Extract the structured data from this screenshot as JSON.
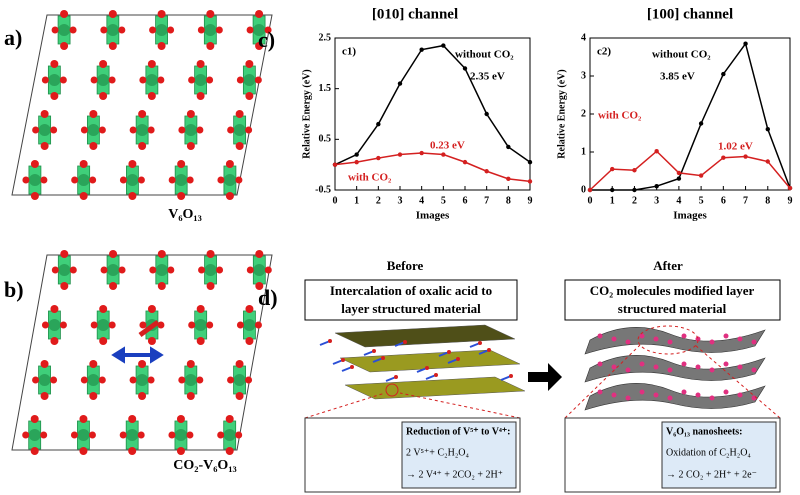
{
  "panels": {
    "a": {
      "label": "a)",
      "caption": "V₆O₁₃"
    },
    "b": {
      "label": "b)",
      "caption": "CO₂-V₆O₁₃"
    },
    "c": {
      "label": "c)"
    },
    "d": {
      "label": "d)",
      "before": "Before",
      "after": "After",
      "before_box": [
        "Intercalation of oxalic acid to",
        "layer structured material"
      ],
      "after_box": [
        "CO₂ molecules modified layer",
        "structured material"
      ],
      "before_inset": [
        "Reduction of V⁵⁺ to V⁴⁺:",
        "2 V⁵⁺+ C₂H₂O₄",
        "→ 2 V⁴⁺ + 2CO₂ + 2H⁺"
      ],
      "after_inset": [
        "V₆O₁₃ nanosheets:",
        "Oxidation of C₂H₂O₄",
        "→ 2 CO₂ + 2H⁺ + 2e⁻"
      ]
    }
  },
  "chart_data": [
    {
      "type": "line",
      "title": "[010] channel",
      "xlabel": "Images",
      "ylabel": "Relative Energy (eV)",
      "x": [
        0,
        1,
        2,
        3,
        4,
        5,
        6,
        7,
        8,
        9
      ],
      "series": [
        {
          "name": "without CO₂",
          "color": "#000000",
          "values": [
            0,
            0.2,
            0.8,
            1.6,
            2.27,
            2.35,
            1.9,
            1.0,
            0.35,
            0.05
          ]
        },
        {
          "name": "with CO₂",
          "color": "#d42020",
          "values": [
            0,
            0.05,
            0.13,
            0.2,
            0.23,
            0.2,
            0.05,
            -0.13,
            -0.28,
            -0.33
          ]
        }
      ],
      "xlim": [
        0,
        9
      ],
      "ylim": [
        -0.5,
        2.5
      ],
      "xticks": [
        0,
        1,
        2,
        3,
        4,
        5,
        6,
        7,
        8,
        9
      ],
      "yticks": [
        -0.5,
        0.5,
        1.5,
        2.5
      ],
      "annotations": [
        {
          "text": "c1)",
          "color": "#000000"
        },
        {
          "text": "without CO₂",
          "color": "#000000"
        },
        {
          "text": "2.35 eV",
          "color": "#000000"
        },
        {
          "text": "0.23 eV",
          "color": "#d42020"
        },
        {
          "text": "with CO₂",
          "color": "#d42020"
        }
      ]
    },
    {
      "type": "line",
      "title": "[100] channel",
      "xlabel": "Images",
      "ylabel": "Relative Energy (eV)",
      "x": [
        0,
        1,
        2,
        3,
        4,
        5,
        6,
        7,
        8,
        9
      ],
      "series": [
        {
          "name": "without CO₂",
          "color": "#000000",
          "values": [
            0,
            0,
            0,
            0.1,
            0.3,
            1.75,
            3.05,
            3.85,
            1.6,
            0.05
          ]
        },
        {
          "name": "with CO₂",
          "color": "#d42020",
          "values": [
            0,
            0.55,
            0.52,
            1.02,
            0.45,
            0.38,
            0.85,
            0.88,
            0.75,
            0.05
          ]
        }
      ],
      "xlim": [
        0,
        9
      ],
      "ylim": [
        0,
        4
      ],
      "xticks": [
        0,
        1,
        2,
        3,
        4,
        5,
        6,
        7,
        8,
        9
      ],
      "yticks": [
        0,
        1,
        2,
        3,
        4
      ],
      "annotations": [
        {
          "text": "c2)",
          "color": "#000000"
        },
        {
          "text": "without CO₂",
          "color": "#000000"
        },
        {
          "text": "3.85 eV",
          "color": "#000000"
        },
        {
          "text": "with CO₂",
          "color": "#d42020"
        },
        {
          "text": "1.02 eV",
          "color": "#d42020"
        }
      ]
    }
  ]
}
